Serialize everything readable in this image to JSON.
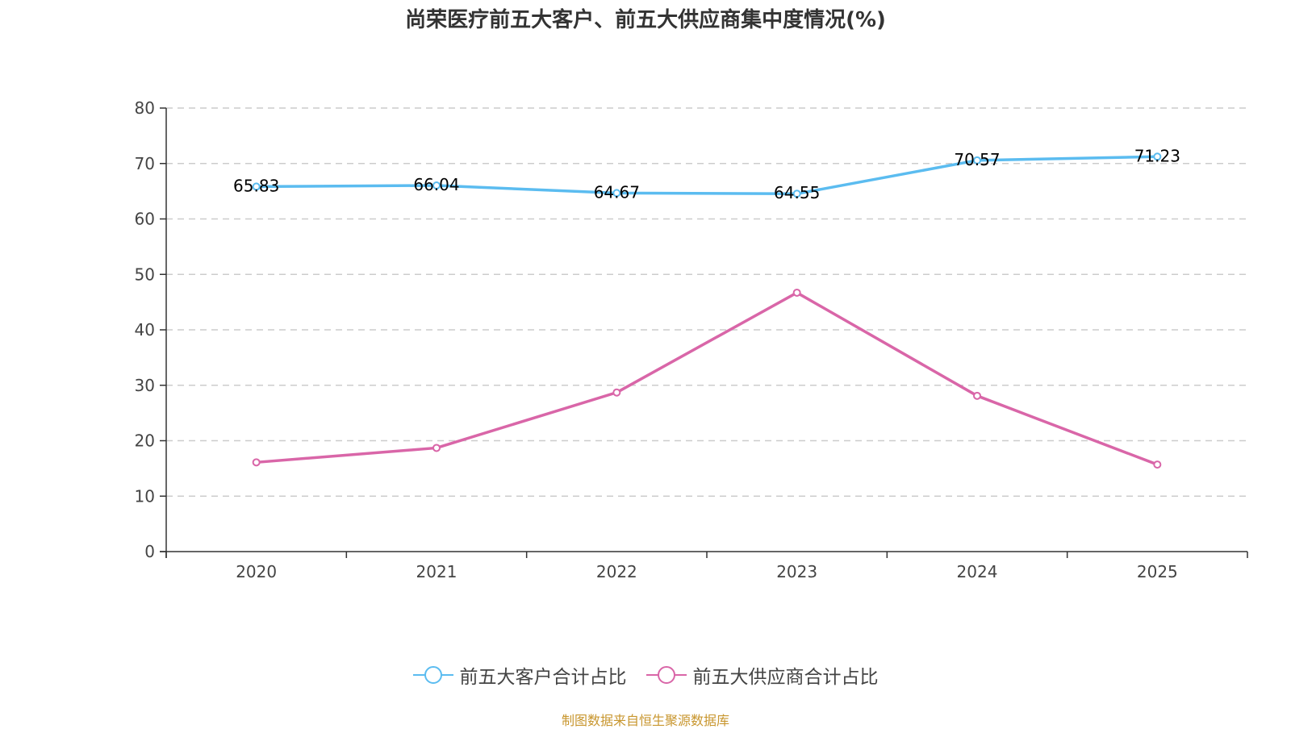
{
  "chart_data": {
    "type": "line",
    "title": "尚荣医疗前五大客户、前五大供应商集中度情况(%)",
    "xlabel": "",
    "ylabel": "",
    "x": [
      "2020",
      "2021",
      "2022",
      "2023",
      "2024",
      "2025"
    ],
    "ylim": [
      0,
      80
    ],
    "yticks": [
      0,
      10,
      20,
      30,
      40,
      50,
      60,
      70,
      80
    ],
    "grid": true,
    "legend_position": "bottom-center",
    "series": [
      {
        "name": "前五大客户合计占比",
        "color": "#5bbcf0",
        "values": [
          65.83,
          66.04,
          64.67,
          64.55,
          70.57,
          71.23
        ],
        "labels": [
          "65.83",
          "66.04",
          "64.67",
          "64.55",
          "70.57",
          "71.23"
        ],
        "show_labels": true
      },
      {
        "name": "前五大供应商合计占比",
        "color": "#d966a8",
        "values": [
          16.1,
          18.7,
          28.7,
          46.7,
          28.1,
          15.7
        ],
        "show_labels": false
      }
    ],
    "source": "制图数据来自恒生聚源数据库"
  },
  "colors": {
    "title": "#333333",
    "axis": "#333333",
    "grid": "#cccccc",
    "source": "#c8962e"
  }
}
